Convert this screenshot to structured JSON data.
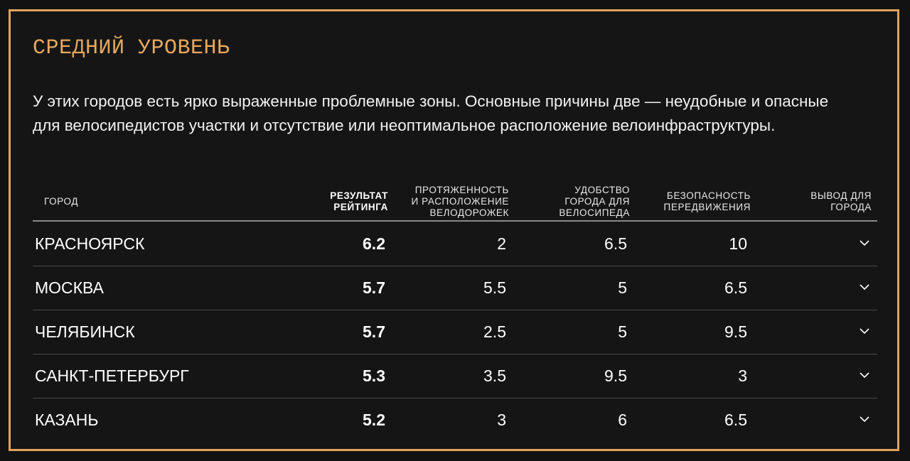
{
  "section": {
    "title": "СРЕДНИЙ УРОВЕНЬ",
    "intro": "У этих городов есть ярко выраженные проблемные зоны. Основные причины две — неудобные и опасные для велосипедистов участки и отсутствие или неоптимальное расположение велоинфраструктуры."
  },
  "table": {
    "headers": {
      "city": "ГОРОД",
      "score": [
        "РЕЗУЛЬТАТ",
        "РЕЙТИНГА"
      ],
      "lanes": [
        "ПРОТЯЖЕННОСТЬ",
        "И РАСПОЛОЖЕНИЕ",
        "ВЕЛОДОРОЖЕК"
      ],
      "comfort": [
        "УДОБСТВО",
        "ГОРОДА ДЛЯ",
        "ВЕЛОСИПЕДА"
      ],
      "safety": [
        "БЕЗОПАСНОСТЬ",
        "ПЕРЕДВИЖЕНИЯ"
      ],
      "conclusion": [
        "ВЫВОД ДЛЯ",
        "ГОРОДА"
      ]
    },
    "rows": [
      {
        "city": "КРАСНОЯРСК",
        "score": "6.2",
        "lanes": "2",
        "comfort": "6.5",
        "safety": "10"
      },
      {
        "city": "МОСКВА",
        "score": "5.7",
        "lanes": "5.5",
        "comfort": "5",
        "safety": "6.5"
      },
      {
        "city": "ЧЕЛЯБИНСК",
        "score": "5.7",
        "lanes": "2.5",
        "comfort": "5",
        "safety": "9.5"
      },
      {
        "city": "САНКТ-ПЕТЕРБУРГ",
        "score": "5.3",
        "lanes": "3.5",
        "comfort": "9.5",
        "safety": "3"
      },
      {
        "city": "КАЗАНЬ",
        "score": "5.2",
        "lanes": "3",
        "comfort": "6",
        "safety": "6.5"
      }
    ]
  },
  "icons": {
    "expand": "chevron-down-icon"
  },
  "colors": {
    "accent": "#e8a85c",
    "background": "#151516"
  }
}
